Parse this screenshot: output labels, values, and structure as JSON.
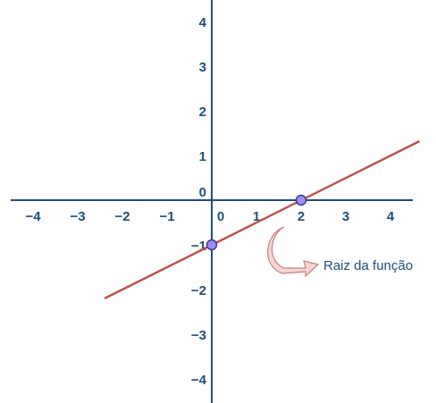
{
  "chart_data": {
    "type": "line",
    "title": "",
    "xlabel": "",
    "ylabel": "",
    "xlim": [
      -4.5,
      4.5
    ],
    "ylim": [
      -4.5,
      4.5
    ],
    "grid": false,
    "x_ticks": [
      "−4",
      "−3",
      "−2",
      "−1",
      "0",
      "1",
      "2",
      "3",
      "4"
    ],
    "x_tick_values": [
      -4,
      -3,
      -2,
      -1,
      0,
      1,
      2,
      3,
      4
    ],
    "y_ticks": [
      "4",
      "3",
      "2",
      "1",
      "0",
      "−1",
      "−2",
      "−3",
      "−4"
    ],
    "y_tick_values": [
      4,
      3,
      2,
      1,
      0,
      -1,
      -2,
      -3,
      -4
    ],
    "series": [
      {
        "x": [
          -2.4,
          4.65
        ],
        "y": [
          -2.2,
          1.32
        ]
      }
    ],
    "points": [
      {
        "x": 0,
        "y": -1
      },
      {
        "x": 2,
        "y": 0
      }
    ],
    "annotation": {
      "text": "Raiz da função",
      "target": {
        "x": 2,
        "y": 0
      }
    },
    "colors": {
      "axis": "#1f4e79",
      "line": "#c0504d",
      "point_fill": "#9b8ef0",
      "point_stroke": "#3b3b8f",
      "arrow_fill": "#f6d5d5",
      "arrow_stroke": "#c97f7f"
    }
  }
}
